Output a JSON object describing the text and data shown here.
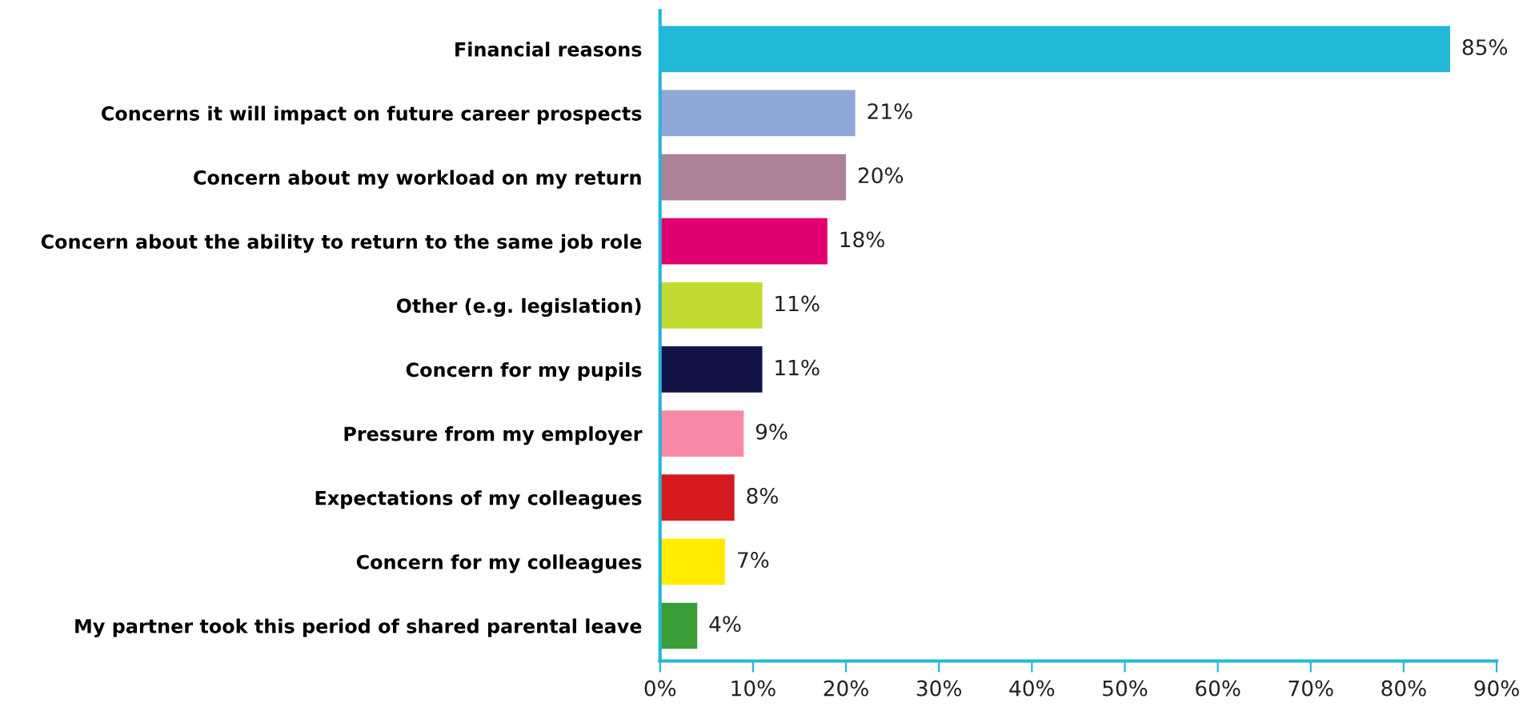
{
  "chart_data": {
    "type": "bar",
    "orientation": "horizontal",
    "categories": [
      "Financial reasons",
      "Concerns it will impact on future career prospects",
      "Concern about my workload on my return",
      "Concern about the ability to return to the same job role",
      "Other (e.g. legislation)",
      "Concern for my pupils",
      "Pressure from my employer",
      "Expectations of my colleagues",
      "Concern for my colleagues",
      "My partner took this period of shared parental leave"
    ],
    "values": [
      85,
      21,
      20,
      18,
      11,
      11,
      9,
      8,
      7,
      4
    ],
    "colors": [
      "#22b8d8",
      "#8fa8d8",
      "#ad8198",
      "#e0006f",
      "#c2d92f",
      "#121448",
      "#f98aa6",
      "#d4191f",
      "#ffec00",
      "#3a9e37"
    ],
    "value_labels": [
      "85%",
      "21%",
      "20%",
      "18%",
      "11%",
      "11%",
      "9%",
      "8%",
      "7%",
      "4%"
    ],
    "xlim": [
      0,
      90
    ],
    "xticks": [
      {
        "value": 0,
        "label": "0%"
      },
      {
        "value": 10,
        "label": "10%"
      },
      {
        "value": 20,
        "label": "20%"
      },
      {
        "value": 30,
        "label": "30%"
      },
      {
        "value": 40,
        "label": "40%"
      },
      {
        "value": 50,
        "label": "50%"
      },
      {
        "value": 60,
        "label": "60%"
      },
      {
        "value": 70,
        "label": "70%"
      },
      {
        "value": 80,
        "label": "80%"
      },
      {
        "value": 90,
        "label": "90%"
      }
    ],
    "grid": false,
    "legend": false
  }
}
